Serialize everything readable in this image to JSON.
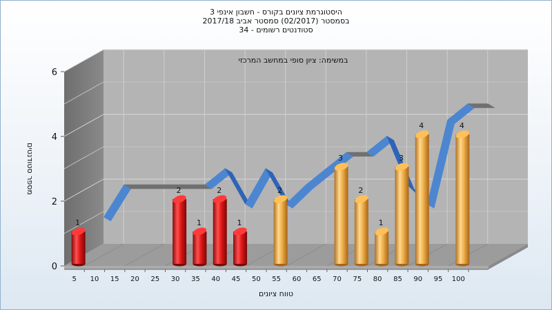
{
  "chart_data": {
    "type": "bar",
    "title_lines": [
      "היסטוגרמת ציונים בקורס - חשבון אינפי 3",
      "בסמסטר  (02/2017)  סמסטר אביב 2017/18",
      "סטודנטים רשומים - 34"
    ],
    "subtitle": "במשימה: ציון סופי במחשב המרכזי",
    "xlabel": "טווח ציונים",
    "ylabel": "מספר סטודנטים",
    "ylim": [
      0,
      6
    ],
    "yticks": [
      0,
      2,
      4,
      6
    ],
    "grid": true,
    "categories": [
      "5",
      "10",
      "15",
      "20",
      "25",
      "30",
      "35",
      "40",
      "45",
      "50",
      "55",
      "60",
      "65",
      "70",
      "75",
      "80",
      "85",
      "90",
      "95",
      "100"
    ],
    "values": [
      1,
      0,
      0,
      0,
      0,
      2,
      1,
      2,
      1,
      0,
      2,
      0,
      0,
      3,
      2,
      1,
      3,
      4,
      0,
      4
    ],
    "bar_colors": [
      "#e02020",
      "#e02020",
      "#e02020",
      "#e02020",
      "#e02020",
      "#e02020",
      "#e02020",
      "#e02020",
      "#e02020",
      "#e02020",
      "#f0b040",
      "#f0b040",
      "#f0b040",
      "#f0b040",
      "#f0b040",
      "#f0b040",
      "#f0b040",
      "#f0b040",
      "#f0b040",
      "#f0b040"
    ],
    "ribbon": [
      1,
      2,
      2,
      2,
      2,
      2,
      2.5,
      1.4,
      2.5,
      1.4,
      2,
      2.5,
      3,
      3,
      3.5,
      2,
      1.4,
      4,
      4.5,
      4.5
    ]
  }
}
